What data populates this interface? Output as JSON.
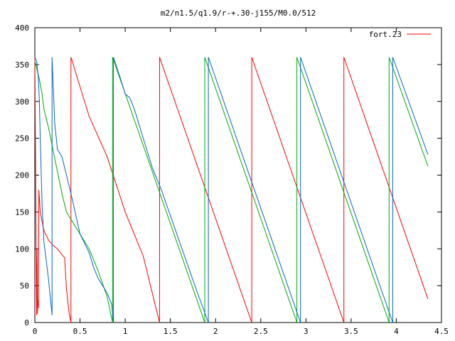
{
  "chart_data": {
    "type": "line",
    "title": "m2/n1.5/q1.9/r-+.30-j155/M0.0/512",
    "xlabel": "",
    "ylabel": "",
    "xlim": [
      0,
      4.5
    ],
    "ylim": [
      0,
      400
    ],
    "x_ticks": [
      "0",
      "0.5",
      "1",
      "1.5",
      "2",
      "2.5",
      "3",
      "3.5",
      "4",
      "4.5"
    ],
    "y_ticks": [
      "0",
      "50",
      "100",
      "150",
      "200",
      "250",
      "300",
      "350",
      "400"
    ],
    "x_tick_values": [
      0,
      0.5,
      1,
      1.5,
      2,
      2.5,
      3,
      3.5,
      4,
      4.5
    ],
    "y_tick_values": [
      0,
      50,
      100,
      150,
      200,
      250,
      300,
      350,
      400
    ],
    "grid": false,
    "legend_position": "top-right",
    "series": [
      {
        "name": "fort.23",
        "color": "#ff0000",
        "points": [
          [
            0.0,
            360
          ],
          [
            0.02,
            10
          ],
          [
            0.025,
            100
          ],
          [
            0.03,
            12
          ],
          [
            0.035,
            30
          ],
          [
            0.04,
            20
          ],
          [
            0.045,
            180
          ],
          [
            0.06,
            150
          ],
          [
            0.1,
            125
          ],
          [
            0.15,
            112
          ],
          [
            0.2,
            105
          ],
          [
            0.25,
            100
          ],
          [
            0.3,
            92
          ],
          [
            0.33,
            88
          ],
          [
            0.35,
            45
          ],
          [
            0.38,
            12
          ],
          [
            0.4,
            0
          ],
          [
            0.4,
            360
          ],
          [
            0.6,
            280
          ],
          [
            0.8,
            225
          ],
          [
            1.0,
            150
          ],
          [
            1.1,
            120
          ],
          [
            1.2,
            90
          ],
          [
            1.3,
            40
          ],
          [
            1.38,
            0
          ],
          [
            1.38,
            360
          ],
          [
            2.4,
            0
          ],
          [
            2.4,
            360
          ],
          [
            3.42,
            0
          ],
          [
            3.42,
            360
          ],
          [
            4.35,
            32
          ]
        ]
      },
      {
        "name": "",
        "color": "#00aa00",
        "points": [
          [
            0.0,
            355
          ],
          [
            0.03,
            340
          ],
          [
            0.05,
            330
          ],
          [
            0.08,
            310
          ],
          [
            0.1,
            290
          ],
          [
            0.15,
            265
          ],
          [
            0.2,
            235
          ],
          [
            0.25,
            205
          ],
          [
            0.3,
            175
          ],
          [
            0.35,
            150
          ],
          [
            0.4,
            140
          ],
          [
            0.5,
            120
          ],
          [
            0.6,
            100
          ],
          [
            0.7,
            70
          ],
          [
            0.8,
            35
          ],
          [
            0.86,
            0
          ],
          [
            0.86,
            360
          ],
          [
            1.88,
            0
          ],
          [
            1.88,
            360
          ],
          [
            2.9,
            0
          ],
          [
            2.9,
            360
          ],
          [
            3.92,
            0
          ],
          [
            3.92,
            360
          ],
          [
            4.35,
            212
          ]
        ]
      },
      {
        "name": "",
        "color": "#0066cc",
        "points": [
          [
            0.0,
            360
          ],
          [
            0.02,
            355
          ],
          [
            0.04,
            330
          ],
          [
            0.05,
            300
          ],
          [
            0.06,
            250
          ],
          [
            0.08,
            160
          ],
          [
            0.1,
            110
          ],
          [
            0.15,
            60
          ],
          [
            0.19,
            10
          ],
          [
            0.19,
            360
          ],
          [
            0.22,
            270
          ],
          [
            0.25,
            235
          ],
          [
            0.3,
            225
          ],
          [
            0.35,
            200
          ],
          [
            0.4,
            175
          ],
          [
            0.5,
            120
          ],
          [
            0.6,
            95
          ],
          [
            0.65,
            75
          ],
          [
            0.7,
            60
          ],
          [
            0.75,
            50
          ],
          [
            0.8,
            40
          ],
          [
            0.85,
            25
          ],
          [
            0.87,
            0
          ],
          [
            0.87,
            360
          ],
          [
            0.95,
            330
          ],
          [
            1.0,
            310
          ],
          [
            1.05,
            305
          ],
          [
            1.1,
            290
          ],
          [
            1.2,
            250
          ],
          [
            1.3,
            210
          ],
          [
            1.4,
            180
          ],
          [
            1.6,
            110
          ],
          [
            1.8,
            40
          ],
          [
            1.92,
            0
          ],
          [
            1.92,
            360
          ],
          [
            2.94,
            0
          ],
          [
            2.94,
            360
          ],
          [
            3.96,
            0
          ],
          [
            3.96,
            360
          ],
          [
            4.35,
            228
          ]
        ]
      }
    ]
  }
}
